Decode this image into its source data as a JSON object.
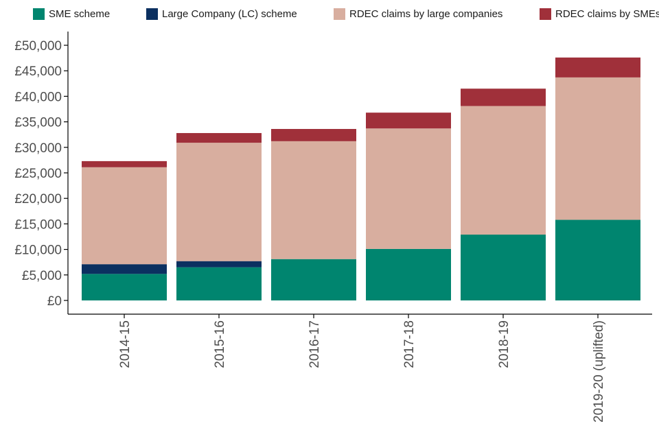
{
  "chart_data": {
    "type": "bar",
    "stacked": true,
    "categories": [
      "2014-15",
      "2015-16",
      "2016-17",
      "2017-18",
      "2018-19",
      "2019-20 (uplifted)"
    ],
    "series": [
      {
        "name": "SME scheme",
        "color": "#00856f",
        "values": [
          5200,
          6500,
          8100,
          10100,
          12900,
          15800
        ]
      },
      {
        "name": "Large Company (LC) scheme",
        "color": "#0b3060",
        "values": [
          1900,
          1200,
          0,
          0,
          0,
          0
        ]
      },
      {
        "name": "RDEC claims by large companies",
        "color": "#d8ae9f",
        "values": [
          19000,
          23200,
          23100,
          23600,
          25200,
          27900
        ]
      },
      {
        "name": "RDEC claims by SMEs",
        "color": "#a0303a",
        "values": [
          1200,
          1900,
          2400,
          3100,
          3400,
          3900
        ]
      }
    ],
    "yticks": [
      "£0",
      "£5,000",
      "£10,000",
      "£15,000",
      "£20,000",
      "£25,000",
      "£30,000",
      "£35,000",
      "£40,000",
      "£45,000",
      "£50,000"
    ],
    "ylim": [
      0,
      50000
    ],
    "legend_position": "top",
    "grid": false,
    "title": "",
    "xlabel": "",
    "ylabel": ""
  }
}
